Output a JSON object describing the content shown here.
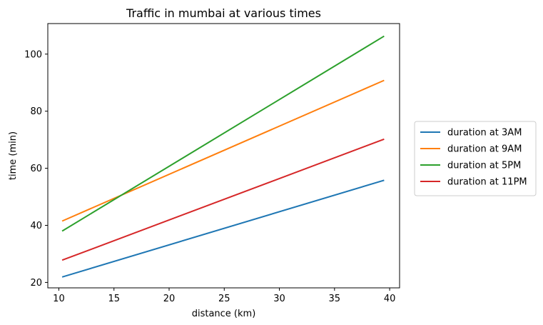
{
  "chart_data": {
    "type": "line",
    "title": "Traffic in mumbai at various times",
    "xlabel": "distance (km)",
    "ylabel": "time (min)",
    "xlim": [
      9.0,
      40.9
    ],
    "ylim": [
      18.1,
      110.7
    ],
    "xticks": [
      10,
      15,
      20,
      25,
      30,
      35,
      40
    ],
    "yticks": [
      20,
      40,
      60,
      80,
      100
    ],
    "grid": false,
    "legend_position": "right",
    "series": [
      {
        "name": "duration at 3AM",
        "color": "#1f77b4",
        "x": [
          10.3,
          39.5
        ],
        "y": [
          21.9,
          55.8
        ]
      },
      {
        "name": "duration at 9AM",
        "color": "#ff7f0e",
        "x": [
          10.3,
          39.5
        ],
        "y": [
          41.5,
          90.8
        ]
      },
      {
        "name": "duration at 5PM",
        "color": "#2ca02c",
        "x": [
          10.3,
          39.5
        ],
        "y": [
          38.0,
          106.3
        ]
      },
      {
        "name": "duration at 11PM",
        "color": "#d62728",
        "x": [
          10.3,
          39.5
        ],
        "y": [
          27.8,
          70.2
        ]
      }
    ]
  }
}
